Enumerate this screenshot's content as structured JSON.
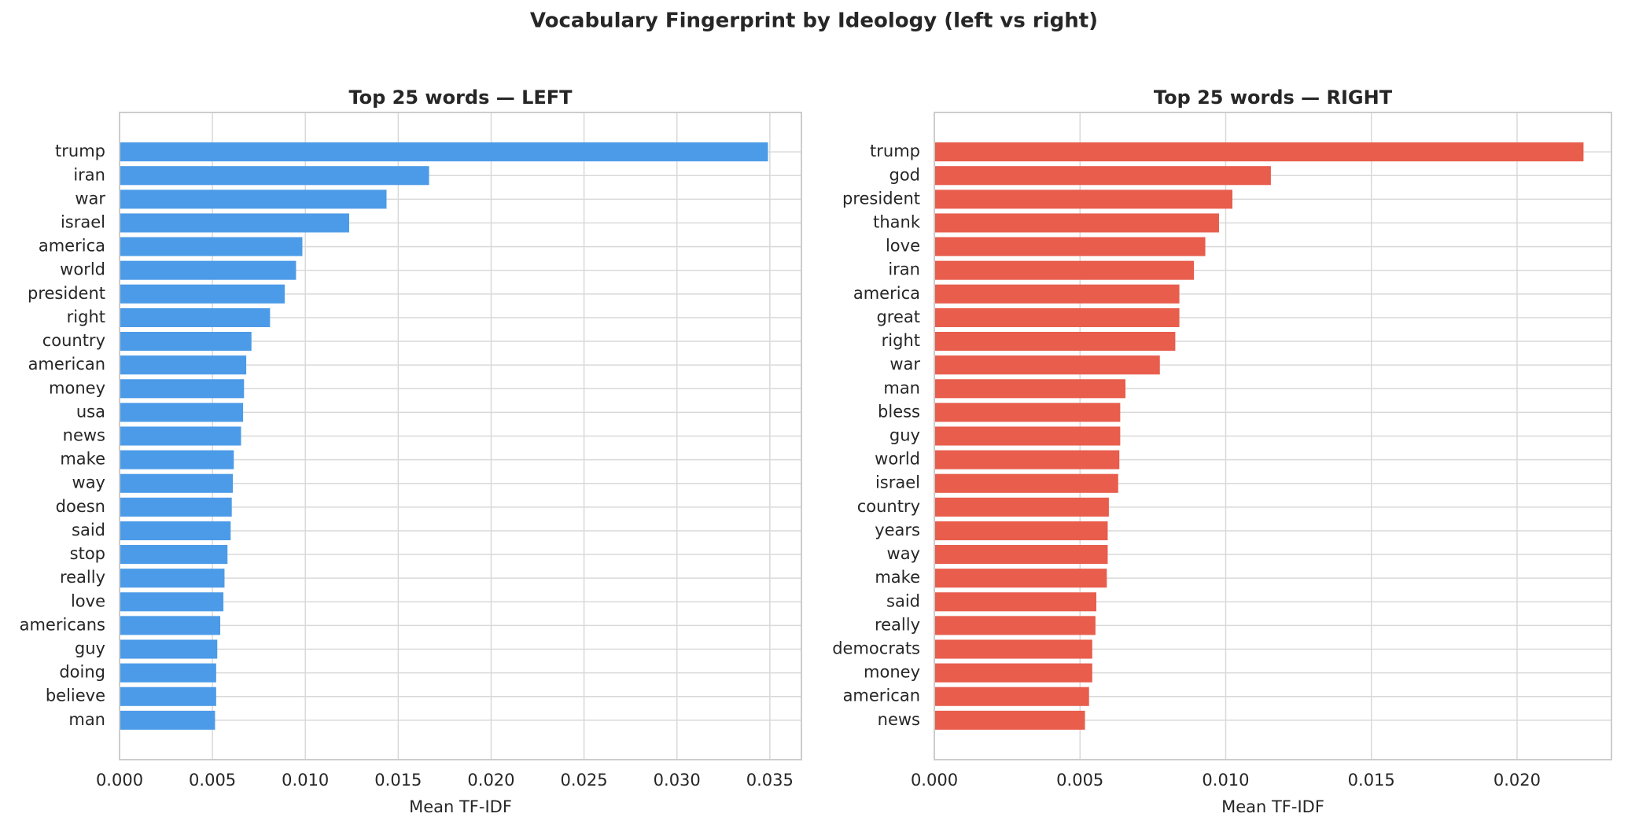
{
  "title": "Vocabulary Fingerprint by Ideology (left vs right)",
  "chart_data": [
    {
      "type": "barh",
      "title": "Top 25 words — LEFT",
      "xlabel": "Mean TF-IDF",
      "color": "#4c9be8",
      "grid": true,
      "categories": [
        "trump",
        "iran",
        "war",
        "israel",
        "america",
        "world",
        "president",
        "right",
        "country",
        "american",
        "money",
        "usa",
        "news",
        "make",
        "way",
        "doesn",
        "said",
        "stop",
        "really",
        "love",
        "americans",
        "guy",
        "doing",
        "believe",
        "man"
      ],
      "values": [
        0.0349,
        0.01666,
        0.01437,
        0.01236,
        0.00984,
        0.0095,
        0.00889,
        0.0081,
        0.0071,
        0.00682,
        0.0067,
        0.00665,
        0.00654,
        0.00615,
        0.0061,
        0.00604,
        0.00598,
        0.00581,
        0.00565,
        0.00559,
        0.00542,
        0.00526,
        0.0052,
        0.0052,
        0.00514
      ],
      "xlim": [
        0,
        0.0367
      ],
      "xticks": [
        {
          "value": 0,
          "label": "0.000"
        },
        {
          "value": 0.005,
          "label": "0.005"
        },
        {
          "value": 0.01,
          "label": "0.010"
        },
        {
          "value": 0.015,
          "label": "0.015"
        },
        {
          "value": 0.02,
          "label": "0.020"
        },
        {
          "value": 0.025,
          "label": "0.025"
        },
        {
          "value": 0.03,
          "label": "0.030"
        },
        {
          "value": 0.035,
          "label": "0.035"
        }
      ]
    },
    {
      "type": "barh",
      "title": "Top 25 words — RIGHT",
      "xlabel": "Mean TF-IDF",
      "color": "#e85d4c",
      "grid": true,
      "categories": [
        "trump",
        "god",
        "president",
        "thank",
        "love",
        "iran",
        "america",
        "great",
        "right",
        "war",
        "man",
        "bless",
        "guy",
        "world",
        "israel",
        "country",
        "years",
        "way",
        "make",
        "said",
        "really",
        "democrats",
        "money",
        "american",
        "news"
      ],
      "values": [
        0.02228,
        0.01155,
        0.01023,
        0.00977,
        0.0093,
        0.00891,
        0.00841,
        0.00841,
        0.00827,
        0.00774,
        0.00656,
        0.00638,
        0.00638,
        0.00635,
        0.00631,
        0.00599,
        0.00595,
        0.00595,
        0.00592,
        0.00556,
        0.00553,
        0.00542,
        0.00542,
        0.00531,
        0.00517
      ],
      "xlim": [
        0,
        0.02324
      ],
      "xticks": [
        {
          "value": 0,
          "label": "0.000"
        },
        {
          "value": 0.005,
          "label": "0.005"
        },
        {
          "value": 0.01,
          "label": "0.010"
        },
        {
          "value": 0.015,
          "label": "0.015"
        },
        {
          "value": 0.02,
          "label": "0.020"
        }
      ]
    }
  ]
}
